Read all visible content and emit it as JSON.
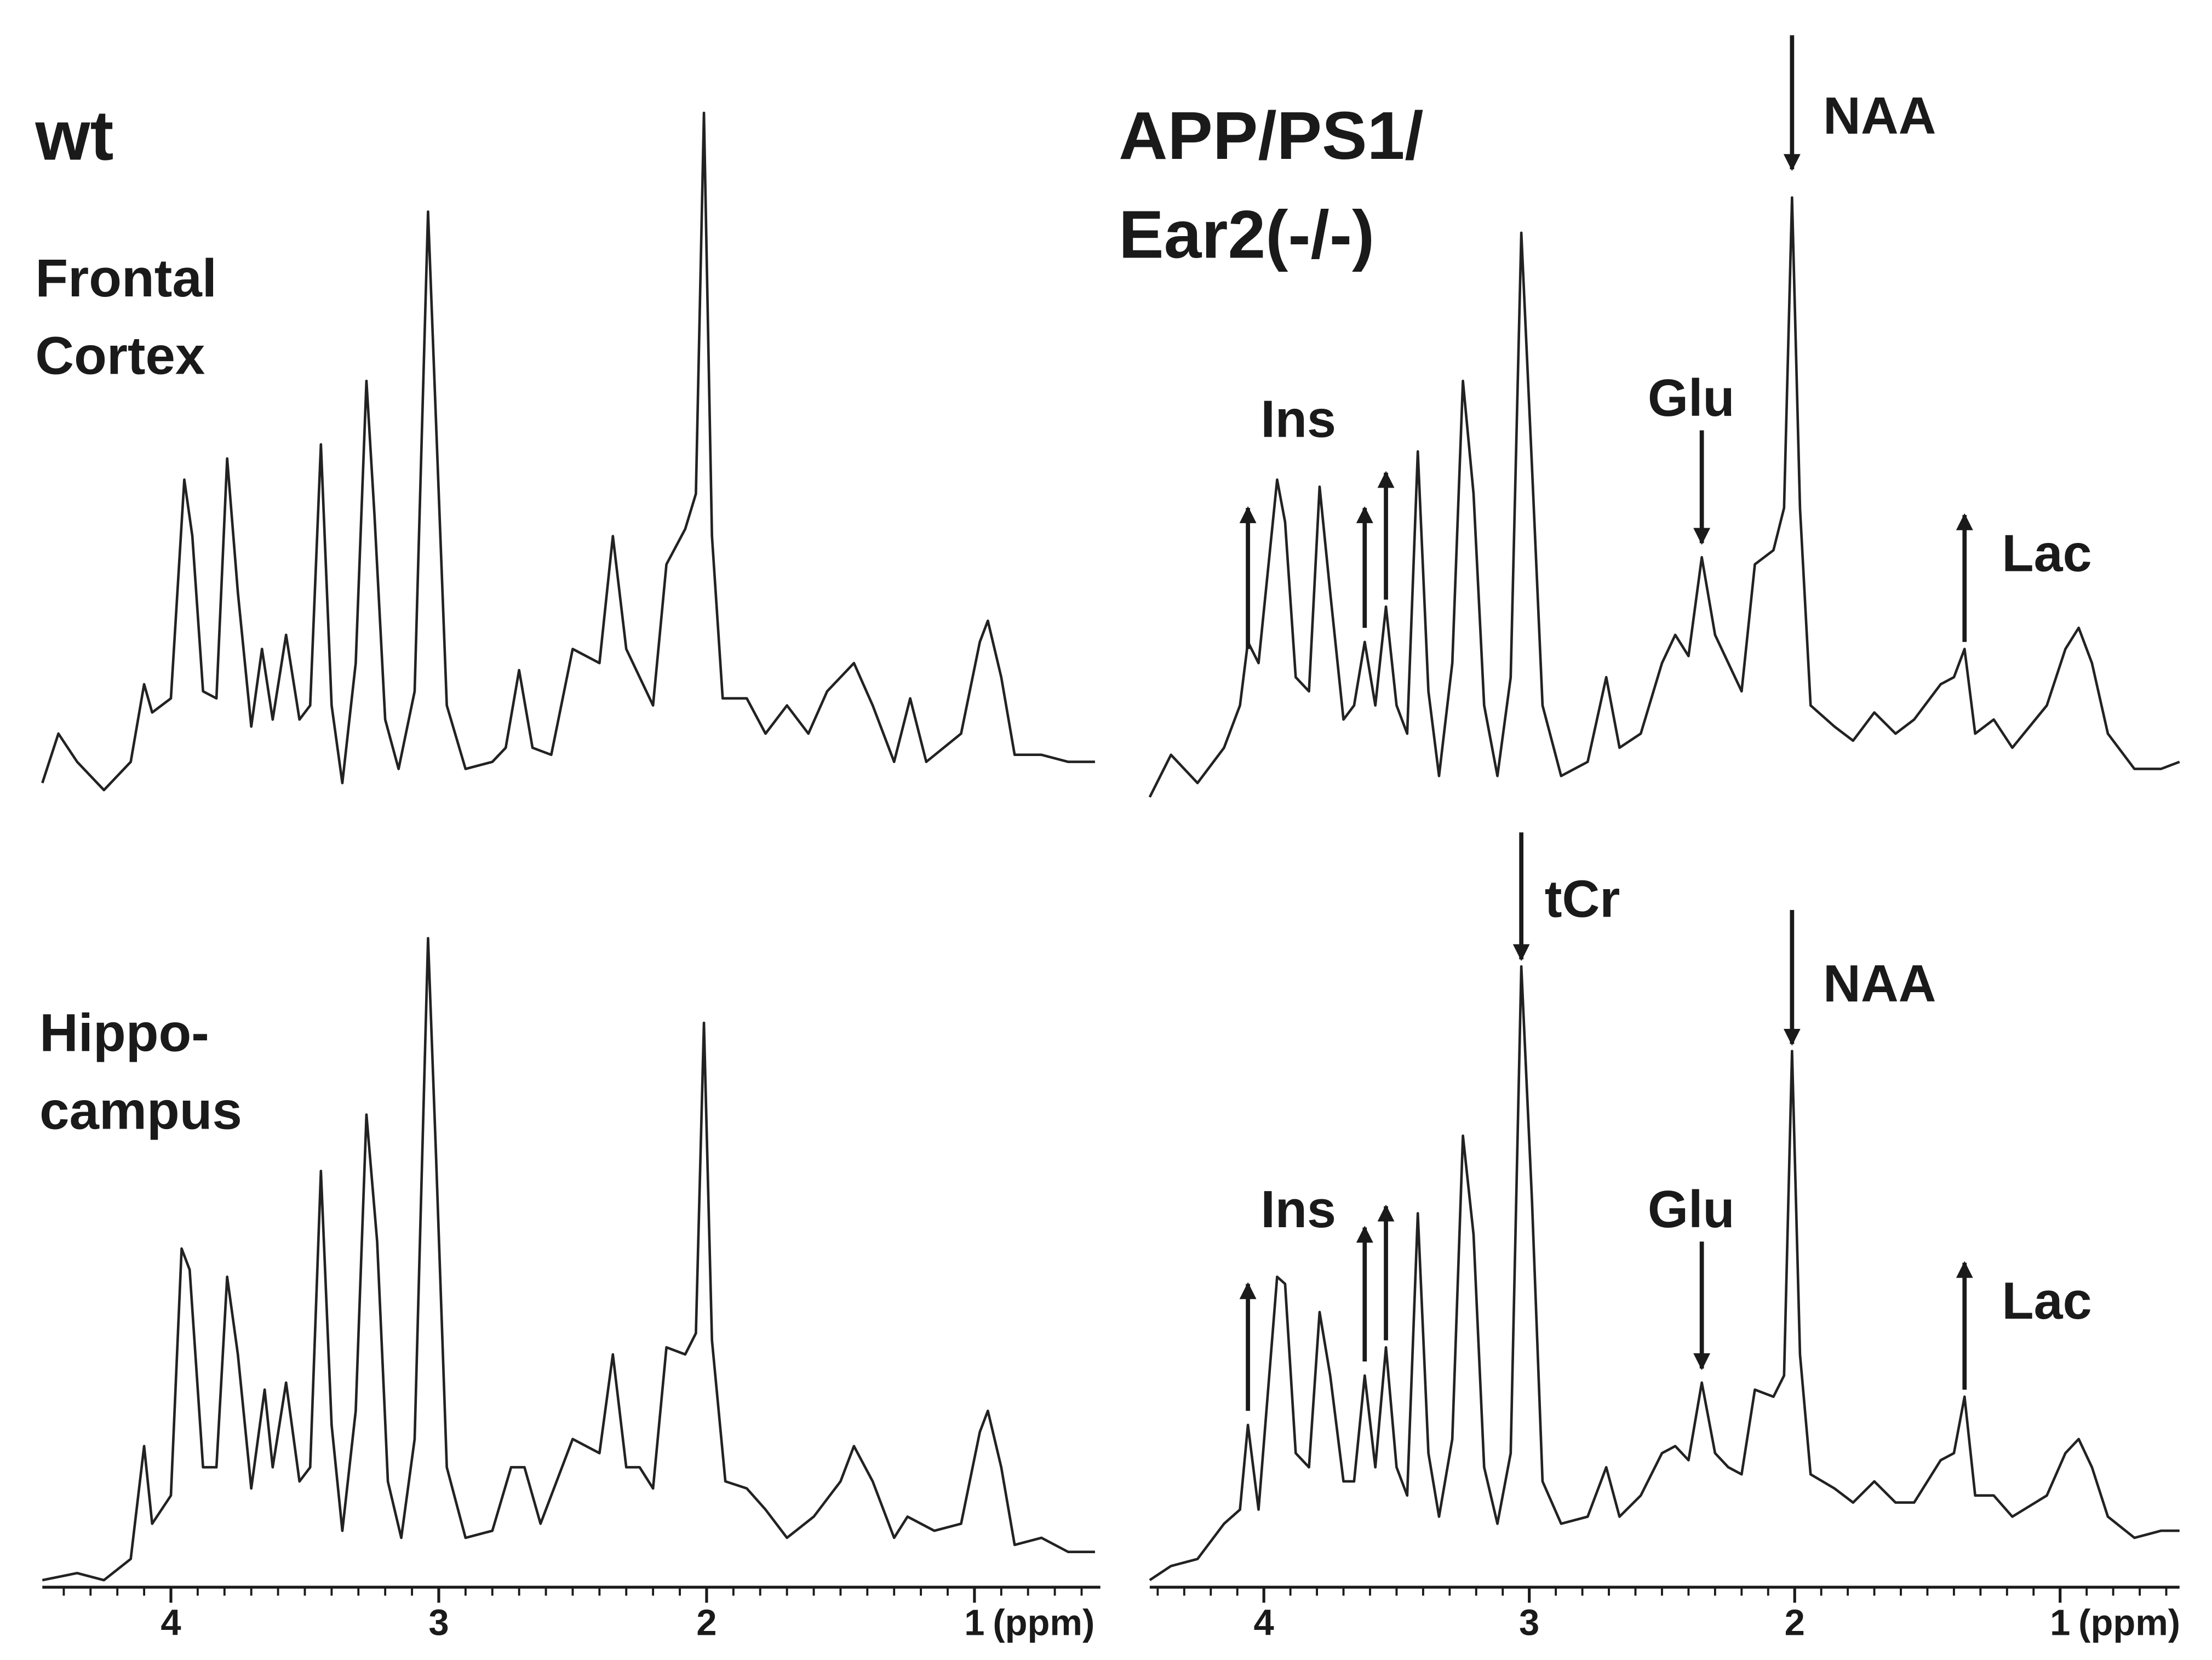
{
  "chart_data": [
    {
      "type": "line",
      "title": [
        "wt"
      ],
      "subtitle": [
        "Frontal",
        "Cortex"
      ],
      "color": "#222222",
      "x": [
        4.48,
        4.42,
        4.35,
        4.25,
        4.15,
        4.1,
        4.07,
        4.0,
        3.95,
        3.92,
        3.88,
        3.83,
        3.79,
        3.75,
        3.7,
        3.66,
        3.62,
        3.57,
        3.52,
        3.48,
        3.44,
        3.4,
        3.36,
        3.31,
        3.27,
        3.24,
        3.2,
        3.15,
        3.09,
        3.04,
        3.01,
        2.97,
        2.9,
        2.8,
        2.75,
        2.7,
        2.65,
        2.58,
        2.5,
        2.45,
        2.4,
        2.35,
        2.3,
        2.25,
        2.2,
        2.15,
        2.08,
        2.04,
        2.01,
        1.98,
        1.94,
        1.85,
        1.78,
        1.7,
        1.62,
        1.55,
        1.45,
        1.38,
        1.3,
        1.24,
        1.18,
        1.05,
        0.98,
        0.95,
        0.9,
        0.85,
        0.75,
        0.65,
        0.55
      ],
      "values": [
        3,
        10,
        6,
        2,
        6,
        17,
        13,
        15,
        46,
        38,
        16,
        15,
        49,
        30,
        11,
        22,
        12,
        24,
        12,
        14,
        51,
        14,
        3,
        20,
        60,
        41,
        12,
        5,
        16,
        84,
        54,
        14,
        5,
        6,
        8,
        19,
        8,
        7,
        22,
        21,
        20,
        38,
        22,
        18,
        14,
        34,
        39,
        44,
        98,
        38,
        15,
        15,
        10,
        14,
        10,
        16,
        20,
        14,
        6,
        15,
        6,
        10,
        23,
        26,
        18,
        7,
        7,
        6,
        6
      ],
      "xlim": [
        4.48,
        0.53
      ],
      "ylim": [
        0,
        100
      ]
    },
    {
      "type": "line",
      "title": [
        "APP/PS1/",
        "Ear2(-/-)"
      ],
      "color": "#222222",
      "x": [
        4.43,
        4.35,
        4.25,
        4.15,
        4.09,
        4.06,
        4.02,
        3.95,
        3.92,
        3.88,
        3.83,
        3.79,
        3.75,
        3.7,
        3.66,
        3.62,
        3.58,
        3.54,
        3.5,
        3.46,
        3.42,
        3.38,
        3.34,
        3.29,
        3.25,
        3.21,
        3.17,
        3.12,
        3.07,
        3.03,
        2.99,
        2.95,
        2.88,
        2.78,
        2.71,
        2.66,
        2.58,
        2.5,
        2.45,
        2.4,
        2.35,
        2.3,
        2.25,
        2.2,
        2.15,
        2.08,
        2.04,
        2.01,
        1.98,
        1.94,
        1.85,
        1.78,
        1.7,
        1.62,
        1.55,
        1.45,
        1.4,
        1.36,
        1.32,
        1.25,
        1.18,
        1.05,
        0.98,
        0.93,
        0.88,
        0.82,
        0.72,
        0.62,
        0.55
      ],
      "values": [
        1,
        7,
        3,
        8,
        14,
        23,
        20,
        46,
        40,
        18,
        16,
        45,
        30,
        12,
        14,
        23,
        14,
        28,
        14,
        10,
        50,
        16,
        4,
        20,
        60,
        44,
        14,
        4,
        18,
        81,
        48,
        14,
        4,
        6,
        18,
        8,
        10,
        20,
        24,
        21,
        35,
        24,
        20,
        16,
        34,
        36,
        42,
        86,
        42,
        14,
        11,
        9,
        13,
        10,
        12,
        17,
        18,
        22,
        10,
        12,
        8,
        14,
        22,
        25,
        20,
        10,
        5,
        5,
        6
      ],
      "xlim": [
        4.43,
        0.55
      ],
      "ylim": [
        0,
        100
      ],
      "arrows": [
        {
          "x": 4.06,
          "from": 22,
          "to": 42
        },
        {
          "x": 3.62,
          "from": 25,
          "to": 42
        },
        {
          "x": 3.54,
          "from": 29,
          "to": 47
        },
        {
          "x": 2.35,
          "from": 53,
          "to": 37
        },
        {
          "x": 2.01,
          "from": 109,
          "to": 90
        },
        {
          "x": 1.36,
          "from": 23,
          "to": 41
        }
      ],
      "labels": [
        {
          "text": "Ins",
          "x": 3.87,
          "y": 54
        },
        {
          "text": "Glu",
          "x": 2.39,
          "y": 57
        },
        {
          "text": "NAA",
          "x": 1.68,
          "y": 97
        },
        {
          "text": "Lac",
          "x": 1.05,
          "y": 35
        }
      ]
    },
    {
      "type": "line",
      "subtitle": [
        "Hippo-",
        "campus"
      ],
      "color": "#222222",
      "x": [
        4.48,
        4.35,
        4.25,
        4.15,
        4.1,
        4.07,
        4.0,
        3.96,
        3.93,
        3.88,
        3.83,
        3.79,
        3.75,
        3.7,
        3.65,
        3.62,
        3.57,
        3.52,
        3.48,
        3.44,
        3.4,
        3.36,
        3.31,
        3.27,
        3.23,
        3.19,
        3.14,
        3.09,
        3.04,
        3.01,
        2.97,
        2.9,
        2.8,
        2.73,
        2.68,
        2.62,
        2.5,
        2.45,
        2.4,
        2.35,
        2.3,
        2.25,
        2.2,
        2.15,
        2.08,
        2.04,
        2.01,
        1.98,
        1.93,
        1.85,
        1.78,
        1.7,
        1.6,
        1.5,
        1.45,
        1.38,
        1.3,
        1.25,
        1.15,
        1.05,
        0.98,
        0.95,
        0.9,
        0.85,
        0.75,
        0.65,
        0.55
      ],
      "values": [
        0,
        1,
        0,
        3,
        19,
        8,
        12,
        47,
        44,
        16,
        16,
        43,
        32,
        13,
        27,
        16,
        28,
        14,
        16,
        58,
        22,
        7,
        24,
        66,
        48,
        14,
        6,
        20,
        91,
        60,
        16,
        6,
        7,
        16,
        16,
        8,
        20,
        19,
        18,
        32,
        16,
        16,
        13,
        33,
        32,
        35,
        79,
        34,
        14,
        13,
        10,
        6,
        9,
        14,
        19,
        14,
        6,
        9,
        7,
        8,
        21,
        24,
        16,
        5,
        6,
        4,
        4
      ],
      "xlim": [
        4.48,
        0.53
      ],
      "ylim": [
        0,
        100
      ],
      "xticks": [
        4,
        3,
        2,
        1
      ],
      "xminor": [
        4.4,
        4.3,
        4.2,
        4.1,
        3.9,
        3.8,
        3.7,
        3.6,
        3.5,
        3.4,
        3.3,
        3.2,
        3.1,
        2.9,
        2.8,
        2.7,
        2.6,
        2.5,
        2.4,
        2.3,
        2.2,
        2.1,
        1.9,
        1.8,
        1.7,
        1.6,
        1.5,
        1.4,
        1.3,
        1.2,
        1.1,
        0.9,
        0.8,
        0.7,
        0.6
      ],
      "xlabel": "(ppm)"
    },
    {
      "type": "line",
      "color": "#222222",
      "x": [
        4.43,
        4.35,
        4.25,
        4.15,
        4.09,
        4.06,
        4.02,
        3.95,
        3.92,
        3.88,
        3.83,
        3.79,
        3.75,
        3.7,
        3.66,
        3.62,
        3.58,
        3.54,
        3.5,
        3.46,
        3.42,
        3.38,
        3.34,
        3.29,
        3.25,
        3.21,
        3.17,
        3.12,
        3.07,
        3.03,
        2.99,
        2.95,
        2.88,
        2.78,
        2.71,
        2.66,
        2.58,
        2.5,
        2.45,
        2.4,
        2.35,
        2.3,
        2.25,
        2.2,
        2.15,
        2.08,
        2.04,
        2.01,
        1.98,
        1.94,
        1.85,
        1.78,
        1.7,
        1.62,
        1.55,
        1.45,
        1.4,
        1.36,
        1.32,
        1.25,
        1.18,
        1.05,
        0.98,
        0.93,
        0.88,
        0.82,
        0.72,
        0.62,
        0.55
      ],
      "values": [
        0,
        2,
        3,
        8,
        10,
        22,
        10,
        43,
        42,
        18,
        16,
        38,
        29,
        14,
        14,
        29,
        16,
        33,
        16,
        12,
        52,
        18,
        9,
        20,
        63,
        49,
        16,
        8,
        18,
        87,
        54,
        14,
        8,
        9,
        16,
        9,
        12,
        18,
        19,
        17,
        28,
        18,
        16,
        15,
        27,
        26,
        29,
        75,
        32,
        15,
        13,
        11,
        14,
        11,
        11,
        17,
        18,
        26,
        12,
        12,
        9,
        12,
        18,
        20,
        16,
        9,
        6,
        7,
        7
      ],
      "xlim": [
        4.43,
        0.55
      ],
      "ylim": [
        0,
        100
      ],
      "xticks": [
        4,
        3,
        2,
        1
      ],
      "xminor": [
        4.4,
        4.3,
        4.2,
        4.1,
        3.9,
        3.8,
        3.7,
        3.6,
        3.5,
        3.4,
        3.3,
        3.2,
        3.1,
        2.9,
        2.8,
        2.7,
        2.6,
        2.5,
        2.4,
        2.3,
        2.2,
        2.1,
        1.9,
        1.8,
        1.7,
        1.6,
        1.5,
        1.4,
        1.3,
        1.2,
        1.1,
        0.9,
        0.8,
        0.7,
        0.6
      ],
      "xlabel": "(ppm)",
      "arrows": [
        {
          "x": 4.06,
          "from": 24,
          "to": 42
        },
        {
          "x": 3.62,
          "from": 31,
          "to": 50
        },
        {
          "x": 3.54,
          "from": 34,
          "to": 53
        },
        {
          "x": 3.03,
          "from": 106,
          "to": 88
        },
        {
          "x": 2.35,
          "from": 48,
          "to": 30
        },
        {
          "x": 2.01,
          "from": 95,
          "to": 76
        },
        {
          "x": 1.36,
          "from": 27,
          "to": 45
        }
      ],
      "labels": [
        {
          "text": "Ins",
          "x": 3.87,
          "y": 52
        },
        {
          "text": "tCr",
          "x": 2.8,
          "y": 96
        },
        {
          "text": "Glu",
          "x": 2.39,
          "y": 52
        },
        {
          "text": "NAA",
          "x": 1.68,
          "y": 84
        },
        {
          "text": "Lac",
          "x": 1.05,
          "y": 39
        }
      ]
    }
  ]
}
